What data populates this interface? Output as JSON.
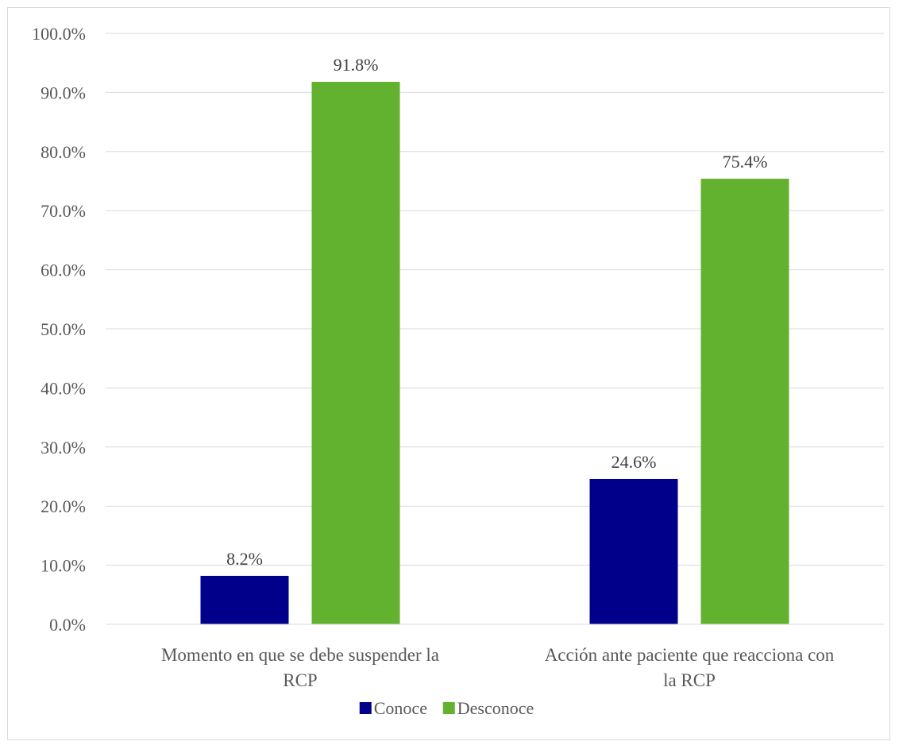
{
  "chart_data": {
    "type": "bar",
    "categories": [
      [
        "Momento en que se debe suspender la",
        "RCP"
      ],
      [
        "Acción ante paciente que reacciona con",
        "la RCP"
      ]
    ],
    "series": [
      {
        "name": "Conoce",
        "color": "#00008b",
        "values": [
          8.2,
          24.6
        ],
        "labels": [
          "8.2%",
          "24.6%"
        ]
      },
      {
        "name": "Desconoce",
        "color": "#62b22f",
        "values": [
          91.8,
          75.4
        ],
        "labels": [
          "91.8%",
          "75.4%"
        ]
      }
    ],
    "ylim": [
      0,
      100
    ],
    "yticks": [
      "0.0%",
      "10.0%",
      "20.0%",
      "30.0%",
      "40.0%",
      "50.0%",
      "60.0%",
      "70.0%",
      "80.0%",
      "90.0%",
      "100.0%"
    ],
    "grid": true,
    "legend": "bottom"
  }
}
